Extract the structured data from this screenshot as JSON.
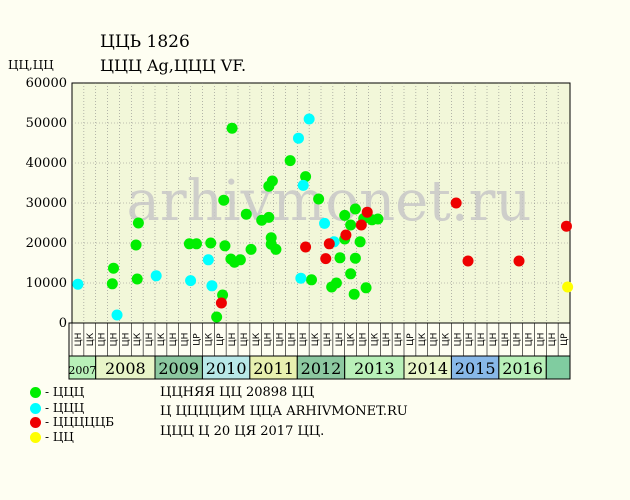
{
  "header": {
    "title": "ЦЦЬ 1826",
    "subtitle": "ЦЦЦ Ag,ЦЦЦ VF.",
    "y_unit": "ЦЦ,ЦЦ"
  },
  "watermark": "arhivmonet.ru",
  "colors": {
    "plot_bg": "#f2f7d9",
    "green": "#00ff00",
    "cyan": "#00ffff",
    "red": "#ff0000",
    "yellow": "#ffff00"
  },
  "legend": [
    {
      "label": "- ЦЦЦ",
      "color": "#00ee00"
    },
    {
      "label": "- ЦЦЦ",
      "color": "#00ffff"
    },
    {
      "label": "- ЦЦЦЦЦБ",
      "color": "#ee0000"
    },
    {
      "label": "- ЦЦ",
      "color": "#ffff00"
    }
  ],
  "info": {
    "line1": "ЦЦНЯЯ ЦЦ 20898 ЦЦ",
    "line2": "Ц ЦЦЦЦИМ ЦЦА ARHIVMONET.RU",
    "line3": "ЦЦЦ Ц 20 ЦЯ 2017 ЦЦ."
  },
  "chart_data": {
    "type": "scatter",
    "ylim": [
      0,
      60000
    ],
    "yticks": [
      0,
      10000,
      20000,
      30000,
      40000,
      50000,
      60000
    ],
    "grid": true,
    "x_slots": 42,
    "x_slot_labels": [
      "ЦН",
      "ЦК",
      "ЦН",
      "ЦН",
      "ЦН",
      "ЦК",
      "ЦН",
      "ЦК",
      "ЦН",
      "ЦН",
      "ЦР",
      "ЦК",
      "ЦР",
      "ЦН",
      "ЦН",
      "ЦК",
      "ЦН",
      "ЦН",
      "ЦН",
      "ЦН",
      "ЦК",
      "ЦН",
      "ЦН",
      "ЦК",
      "ЦН",
      "ЦК",
      "ЦН",
      "ЦН",
      "ЦР",
      "ЦК",
      "ЦН",
      "ЦК",
      "ЦН",
      "ЦН",
      "ЦН",
      "ЦН",
      "ЦН",
      "ЦН",
      "ЦН",
      "ЦН",
      "ЦН",
      "ЦР"
    ],
    "years": [
      {
        "label": "2007",
        "start": 0,
        "span": 2,
        "color": "#b8f0b8"
      },
      {
        "label": "2008",
        "start": 2,
        "span": 5,
        "color": "#e8f5c8"
      },
      {
        "label": "2009",
        "start": 7,
        "span": 4,
        "color": "#8cc8a0"
      },
      {
        "label": "2010",
        "start": 11,
        "span": 4,
        "color": "#b8e8e8"
      },
      {
        "label": "2011",
        "start": 15,
        "span": 4,
        "color": "#e8f0b0"
      },
      {
        "label": "2012",
        "start": 19,
        "span": 4,
        "color": "#8cc8a0"
      },
      {
        "label": "2013",
        "start": 23,
        "span": 5,
        "color": "#b8f0b8"
      },
      {
        "label": "2014",
        "start": 28,
        "span": 4,
        "color": "#e8f5c8"
      },
      {
        "label": "2015",
        "start": 32,
        "span": 4,
        "color": "#88b8e8"
      },
      {
        "label": "2016",
        "start": 36,
        "span": 4,
        "color": "#b8f0b8"
      },
      {
        "label": "",
        "start": 40,
        "span": 2,
        "color": "#80cca0"
      }
    ],
    "series": [
      {
        "color": "#00ee00",
        "points": [
          [
            3.0,
            13700
          ],
          [
            2.9,
            9800
          ],
          [
            4.9,
            19500
          ],
          [
            5.0,
            11000
          ],
          [
            5.1,
            25000
          ],
          [
            9.4,
            19800
          ],
          [
            10.0,
            19800
          ],
          [
            11.2,
            20000
          ],
          [
            11.7,
            1500
          ],
          [
            12.3,
            30700
          ],
          [
            12.4,
            19300
          ],
          [
            12.2,
            7000
          ],
          [
            13.0,
            48700
          ],
          [
            12.9,
            16000
          ],
          [
            13.2,
            15200
          ],
          [
            13.7,
            15800
          ],
          [
            14.2,
            27200
          ],
          [
            14.6,
            18400
          ],
          [
            15.5,
            25700
          ],
          [
            16.1,
            34200
          ],
          [
            16.4,
            35500
          ],
          [
            16.1,
            26400
          ],
          [
            16.3,
            21300
          ],
          [
            16.3,
            19700
          ],
          [
            16.7,
            18400
          ],
          [
            17.9,
            40600
          ],
          [
            19.2,
            36600
          ],
          [
            19.7,
            10800
          ],
          [
            20.3,
            31000
          ],
          [
            21.4,
            9000
          ],
          [
            21.8,
            10000
          ],
          [
            22.1,
            16300
          ],
          [
            22.5,
            26900
          ],
          [
            22.5,
            21000
          ],
          [
            23.0,
            24500
          ],
          [
            23.0,
            12300
          ],
          [
            23.4,
            28500
          ],
          [
            23.3,
            7200
          ],
          [
            23.4,
            16200
          ],
          [
            23.8,
            20300
          ],
          [
            24.1,
            26100
          ],
          [
            24.3,
            8800
          ],
          [
            24.8,
            25800
          ],
          [
            25.3,
            26000
          ]
        ]
      },
      {
        "color": "#00ffff",
        "points": [
          [
            0.0,
            9700
          ],
          [
            3.3,
            2000
          ],
          [
            6.6,
            11800
          ],
          [
            9.5,
            10600
          ],
          [
            11.0,
            15800
          ],
          [
            11.3,
            9300
          ],
          [
            18.6,
            46200
          ],
          [
            18.8,
            11200
          ],
          [
            19.0,
            34400
          ],
          [
            19.5,
            51000
          ],
          [
            20.8,
            24900
          ],
          [
            21.6,
            20300
          ]
        ]
      },
      {
        "color": "#ee0000",
        "points": [
          [
            12.1,
            5000
          ],
          [
            19.2,
            19000
          ],
          [
            20.9,
            16100
          ],
          [
            21.2,
            19800
          ],
          [
            22.6,
            22000
          ],
          [
            23.9,
            24500
          ],
          [
            24.4,
            27700
          ],
          [
            31.9,
            30000
          ],
          [
            32.9,
            15500
          ],
          [
            37.2,
            15500
          ],
          [
            41.2,
            24200
          ]
        ]
      },
      {
        "color": "#ffff00",
        "points": [
          [
            41.3,
            9000
          ]
        ]
      }
    ]
  }
}
